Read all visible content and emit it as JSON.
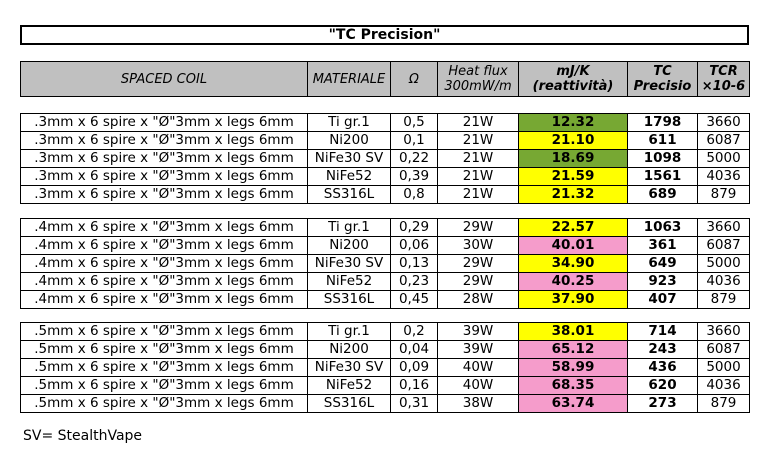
{
  "title": "\"TC Precision\"",
  "header": [
    "SPACED COIL",
    "MATERIALE",
    "Ω",
    "Heat flux 300mW/m",
    "mJ/K (reattività)",
    "TC Precisio",
    "TCR ×10-6"
  ],
  "groups": [
    {
      "rows": [
        {
          "coil": ".3mm x 6 spire x \"Ø\"3mm x legs 6mm",
          "material": "Ti gr.1",
          "ohm": "0,5",
          "heat": "21W",
          "mjk": "12.32",
          "tc": "1798",
          "tcr": "3660",
          "color": "#77a833"
        },
        {
          "coil": ".3mm x 6 spire x \"Ø\"3mm x legs 6mm",
          "material": "Ni200",
          "ohm": "0,1",
          "heat": "21W",
          "mjk": "21.10",
          "tc": "611",
          "tcr": "6087",
          "color": "#ffff00"
        },
        {
          "coil": ".3mm x 6 spire x \"Ø\"3mm x legs 6mm",
          "material": "NiFe30 SV",
          "ohm": "0,22",
          "heat": "21W",
          "mjk": "18.69",
          "tc": "1098",
          "tcr": "5000",
          "color": "#77a833"
        },
        {
          "coil": ".3mm x 6 spire x \"Ø\"3mm x legs 6mm",
          "material": "NiFe52",
          "ohm": "0,39",
          "heat": "21W",
          "mjk": "21.59",
          "tc": "1561",
          "tcr": "4036",
          "color": "#ffff00"
        },
        {
          "coil": ".3mm x 6 spire x \"Ø\"3mm x legs 6mm",
          "material": "SS316L",
          "ohm": "0,8",
          "heat": "21W",
          "mjk": "21.32",
          "tc": "689",
          "tcr": "879",
          "color": "#ffff00"
        }
      ]
    },
    {
      "rows": [
        {
          "coil": ".4mm x 6 spire x \"Ø\"3mm x legs 6mm",
          "material": "Ti gr.1",
          "ohm": "0,29",
          "heat": "29W",
          "mjk": "22.57",
          "tc": "1063",
          "tcr": "3660",
          "color": "#ffff00"
        },
        {
          "coil": ".4mm x 6 spire x \"Ø\"3mm x legs 6mm",
          "material": "Ni200",
          "ohm": "0,06",
          "heat": "30W",
          "mjk": "40.01",
          "tc": "361",
          "tcr": "6087",
          "color": "#f59ccb"
        },
        {
          "coil": ".4mm x 6 spire x \"Ø\"3mm x legs 6mm",
          "material": "NiFe30 SV",
          "ohm": "0,13",
          "heat": "29W",
          "mjk": "34.90",
          "tc": "649",
          "tcr": "5000",
          "color": "#ffff00"
        },
        {
          "coil": ".4mm x 6 spire x \"Ø\"3mm x legs 6mm",
          "material": "NiFe52",
          "ohm": "0,23",
          "heat": "29W",
          "mjk": "40.25",
          "tc": "923",
          "tcr": "4036",
          "color": "#f59ccb"
        },
        {
          "coil": ".4mm x 6 spire x \"Ø\"3mm x legs 6mm",
          "material": "SS316L",
          "ohm": "0,45",
          "heat": "28W",
          "mjk": "37.90",
          "tc": "407",
          "tcr": "879",
          "color": "#ffff00"
        }
      ]
    },
    {
      "rows": [
        {
          "coil": ".5mm x 6 spire x \"Ø\"3mm x legs 6mm",
          "material": "Ti gr.1",
          "ohm": "0,2",
          "heat": "39W",
          "mjk": "38.01",
          "tc": "714",
          "tcr": "3660",
          "color": "#ffff00"
        },
        {
          "coil": ".5mm x 6 spire x \"Ø\"3mm x legs 6mm",
          "material": "Ni200",
          "ohm": "0,04",
          "heat": "39W",
          "mjk": "65.12",
          "tc": "243",
          "tcr": "6087",
          "color": "#f59ccb"
        },
        {
          "coil": ".5mm x 6 spire x \"Ø\"3mm x legs 6mm",
          "material": "NiFe30 SV",
          "ohm": "0,09",
          "heat": "40W",
          "mjk": "58.99",
          "tc": "436",
          "tcr": "5000",
          "color": "#f59ccb"
        },
        {
          "coil": ".5mm x 6 spire x \"Ø\"3mm x legs 6mm",
          "material": "NiFe52",
          "ohm": "0,16",
          "heat": "40W",
          "mjk": "68.35",
          "tc": "620",
          "tcr": "4036",
          "color": "#f59ccb"
        },
        {
          "coil": ".5mm x 6 spire x \"Ø\"3mm x legs 6mm",
          "material": "SS316L",
          "ohm": "0,31",
          "heat": "38W",
          "mjk": "63.74",
          "tc": "273",
          "tcr": "879",
          "color": "#f59ccb"
        }
      ]
    }
  ],
  "footnote": "SV= StealthVape"
}
